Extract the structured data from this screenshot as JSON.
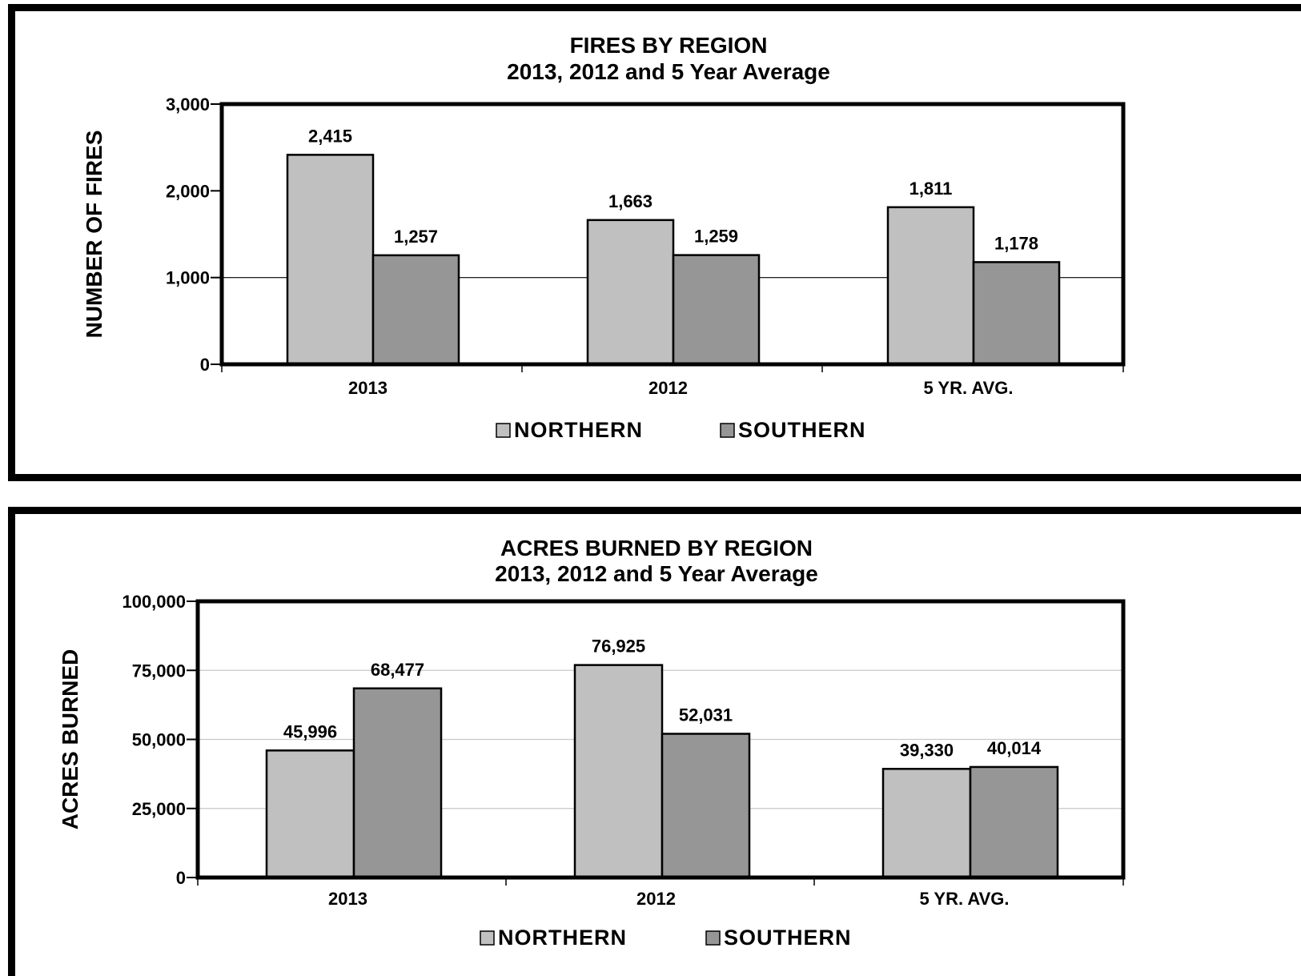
{
  "chart_data": [
    {
      "type": "bar",
      "title": "FIRES BY REGION",
      "subtitle": "2013, 2012 and 5 Year Average",
      "xlabel": "",
      "ylabel": "NUMBER OF FIRES",
      "categories": [
        "2013",
        "2012",
        "5 YR. AVG."
      ],
      "series": [
        {
          "name": "NORTHERN",
          "values": [
            2415,
            1663,
            1811
          ],
          "labels": [
            "2,415",
            "1,663",
            "1,811"
          ],
          "color": "#c0c0c0"
        },
        {
          "name": "SOUTHERN",
          "values": [
            1257,
            1259,
            1178
          ],
          "labels": [
            "1,257",
            "1,259",
            "1,178"
          ],
          "color": "#969696"
        }
      ],
      "ylim": [
        0,
        3000
      ],
      "yticks": [
        0,
        1000,
        2000,
        3000
      ],
      "ytick_labels": [
        "0",
        "1,000",
        "2,000",
        "3,000"
      ],
      "gridlines": [
        1000
      ],
      "legend": "bottom"
    },
    {
      "type": "bar",
      "title": "ACRES BURNED BY REGION",
      "subtitle": "2013, 2012 and 5 Year Average",
      "xlabel": "",
      "ylabel": "ACRES BURNED",
      "categories": [
        "2013",
        "2012",
        "5 YR. AVG."
      ],
      "series": [
        {
          "name": "NORTHERN",
          "values": [
            45996,
            76925,
            39330
          ],
          "labels": [
            "45,996",
            "76,925",
            "39,330"
          ],
          "color": "#c0c0c0"
        },
        {
          "name": "SOUTHERN",
          "values": [
            68477,
            52031,
            40014
          ],
          "labels": [
            "68,477",
            "52,031",
            "40,014"
          ],
          "color": "#969696"
        }
      ],
      "ylim": [
        0,
        100000
      ],
      "yticks": [
        0,
        25000,
        50000,
        75000,
        100000
      ],
      "ytick_labels": [
        "0",
        "25,000",
        "50,000",
        "75,000",
        "100,000"
      ],
      "gridlines": [
        25000,
        50000,
        75000
      ],
      "legend": "bottom"
    }
  ]
}
